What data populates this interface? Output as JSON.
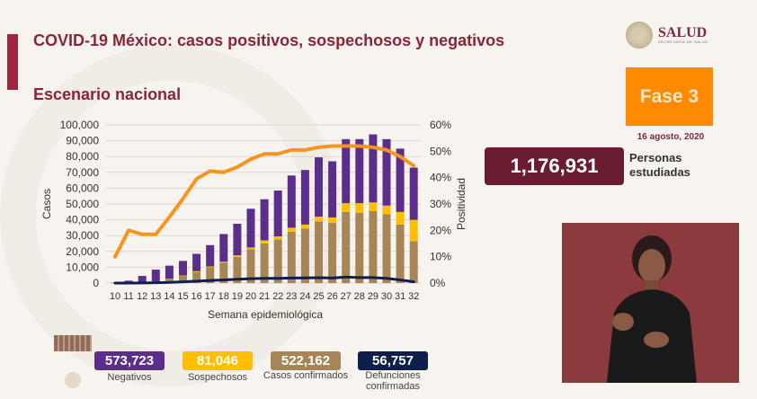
{
  "header": {
    "title": "COVID-19 México: casos positivos, sospechosos y negativos",
    "subtitle": "Escenario nacional",
    "logo_text": "SALUD",
    "logo_subtext": "SECRETARÍA DE SALUD"
  },
  "phase": {
    "label": "Fase 3",
    "date": "16 agosto, 2020",
    "color": "#ff8a00"
  },
  "studied": {
    "value": "1,176,931",
    "label_line1": "Personas",
    "label_line2": "estudiadas"
  },
  "stats": [
    {
      "value": "573,723",
      "label": "Negativos",
      "color": "#5b2e8c"
    },
    {
      "value": "81,046",
      "label": "Sospechosos",
      "color": "#ffbf00"
    },
    {
      "value": "522,162",
      "label": "Casos confirmados",
      "color": "#a88556"
    },
    {
      "value": "56,757",
      "label": "Defunciones confirmadas",
      "color": "#0f1f4d"
    }
  ],
  "chart_data": {
    "type": "bar",
    "stacked": true,
    "xlabel": "Semana epidemiológica",
    "ylabel": "Casos",
    "y2label": "Positividad",
    "ylim": [
      0,
      100000
    ],
    "y2lim": [
      0,
      60
    ],
    "yticks": [
      "0",
      "10,000",
      "20,000",
      "30,000",
      "40,000",
      "50,000",
      "60,000",
      "70,000",
      "80,000",
      "90,000",
      "100,000"
    ],
    "y2ticks": [
      "0%",
      "10%",
      "20%",
      "30%",
      "40%",
      "50%",
      "60%"
    ],
    "grid": true,
    "categories": [
      "10",
      "11",
      "12",
      "13",
      "14",
      "15",
      "16",
      "17",
      "18",
      "19",
      "20",
      "21",
      "22",
      "23",
      "24",
      "25",
      "26",
      "27",
      "28",
      "29",
      "30",
      "31",
      "32"
    ],
    "series": [
      {
        "name": "Casos confirmados",
        "color": "#a88556",
        "values": [
          100,
          300,
          700,
          1000,
          2500,
          4500,
          7000,
          10000,
          13000,
          16500,
          21500,
          25000,
          27500,
          32500,
          34500,
          39000,
          38000,
          45000,
          44500,
          45500,
          43500,
          37000,
          26500
        ]
      },
      {
        "name": "Sospechosos",
        "color": "#ffbf00",
        "values": [
          0,
          0,
          0,
          0,
          200,
          300,
          500,
          500,
          500,
          1000,
          1000,
          2000,
          2000,
          2500,
          2500,
          3000,
          3500,
          5500,
          6000,
          5500,
          5500,
          8000,
          13500
        ]
      },
      {
        "name": "Negativos",
        "color": "#5b2e8c",
        "values": [
          200,
          1200,
          3800,
          7500,
          8300,
          9200,
          11000,
          13500,
          17500,
          20000,
          24500,
          26000,
          29000,
          33000,
          34500,
          37500,
          35500,
          40500,
          40500,
          43000,
          42000,
          40000,
          33000
        ]
      }
    ],
    "lines": [
      {
        "name": "Defunciones confirmadas",
        "color": "#0f1f4d",
        "axis": "left",
        "values": [
          0,
          0,
          100,
          200,
          400,
          800,
          1200,
          1600,
          2000,
          2400,
          2800,
          3000,
          3000,
          3200,
          3300,
          3400,
          3200,
          3800,
          3500,
          3500,
          3000,
          2000,
          800
        ]
      },
      {
        "name": "Positividad",
        "color": "#f7941d",
        "axis": "right",
        "values": [
          10,
          20,
          18.5,
          18.5,
          25,
          32,
          39.5,
          42.5,
          42,
          44,
          47,
          49,
          49,
          50.5,
          50.5,
          51.5,
          52,
          52,
          52,
          51.5,
          50.5,
          48,
          44.5
        ]
      }
    ]
  }
}
